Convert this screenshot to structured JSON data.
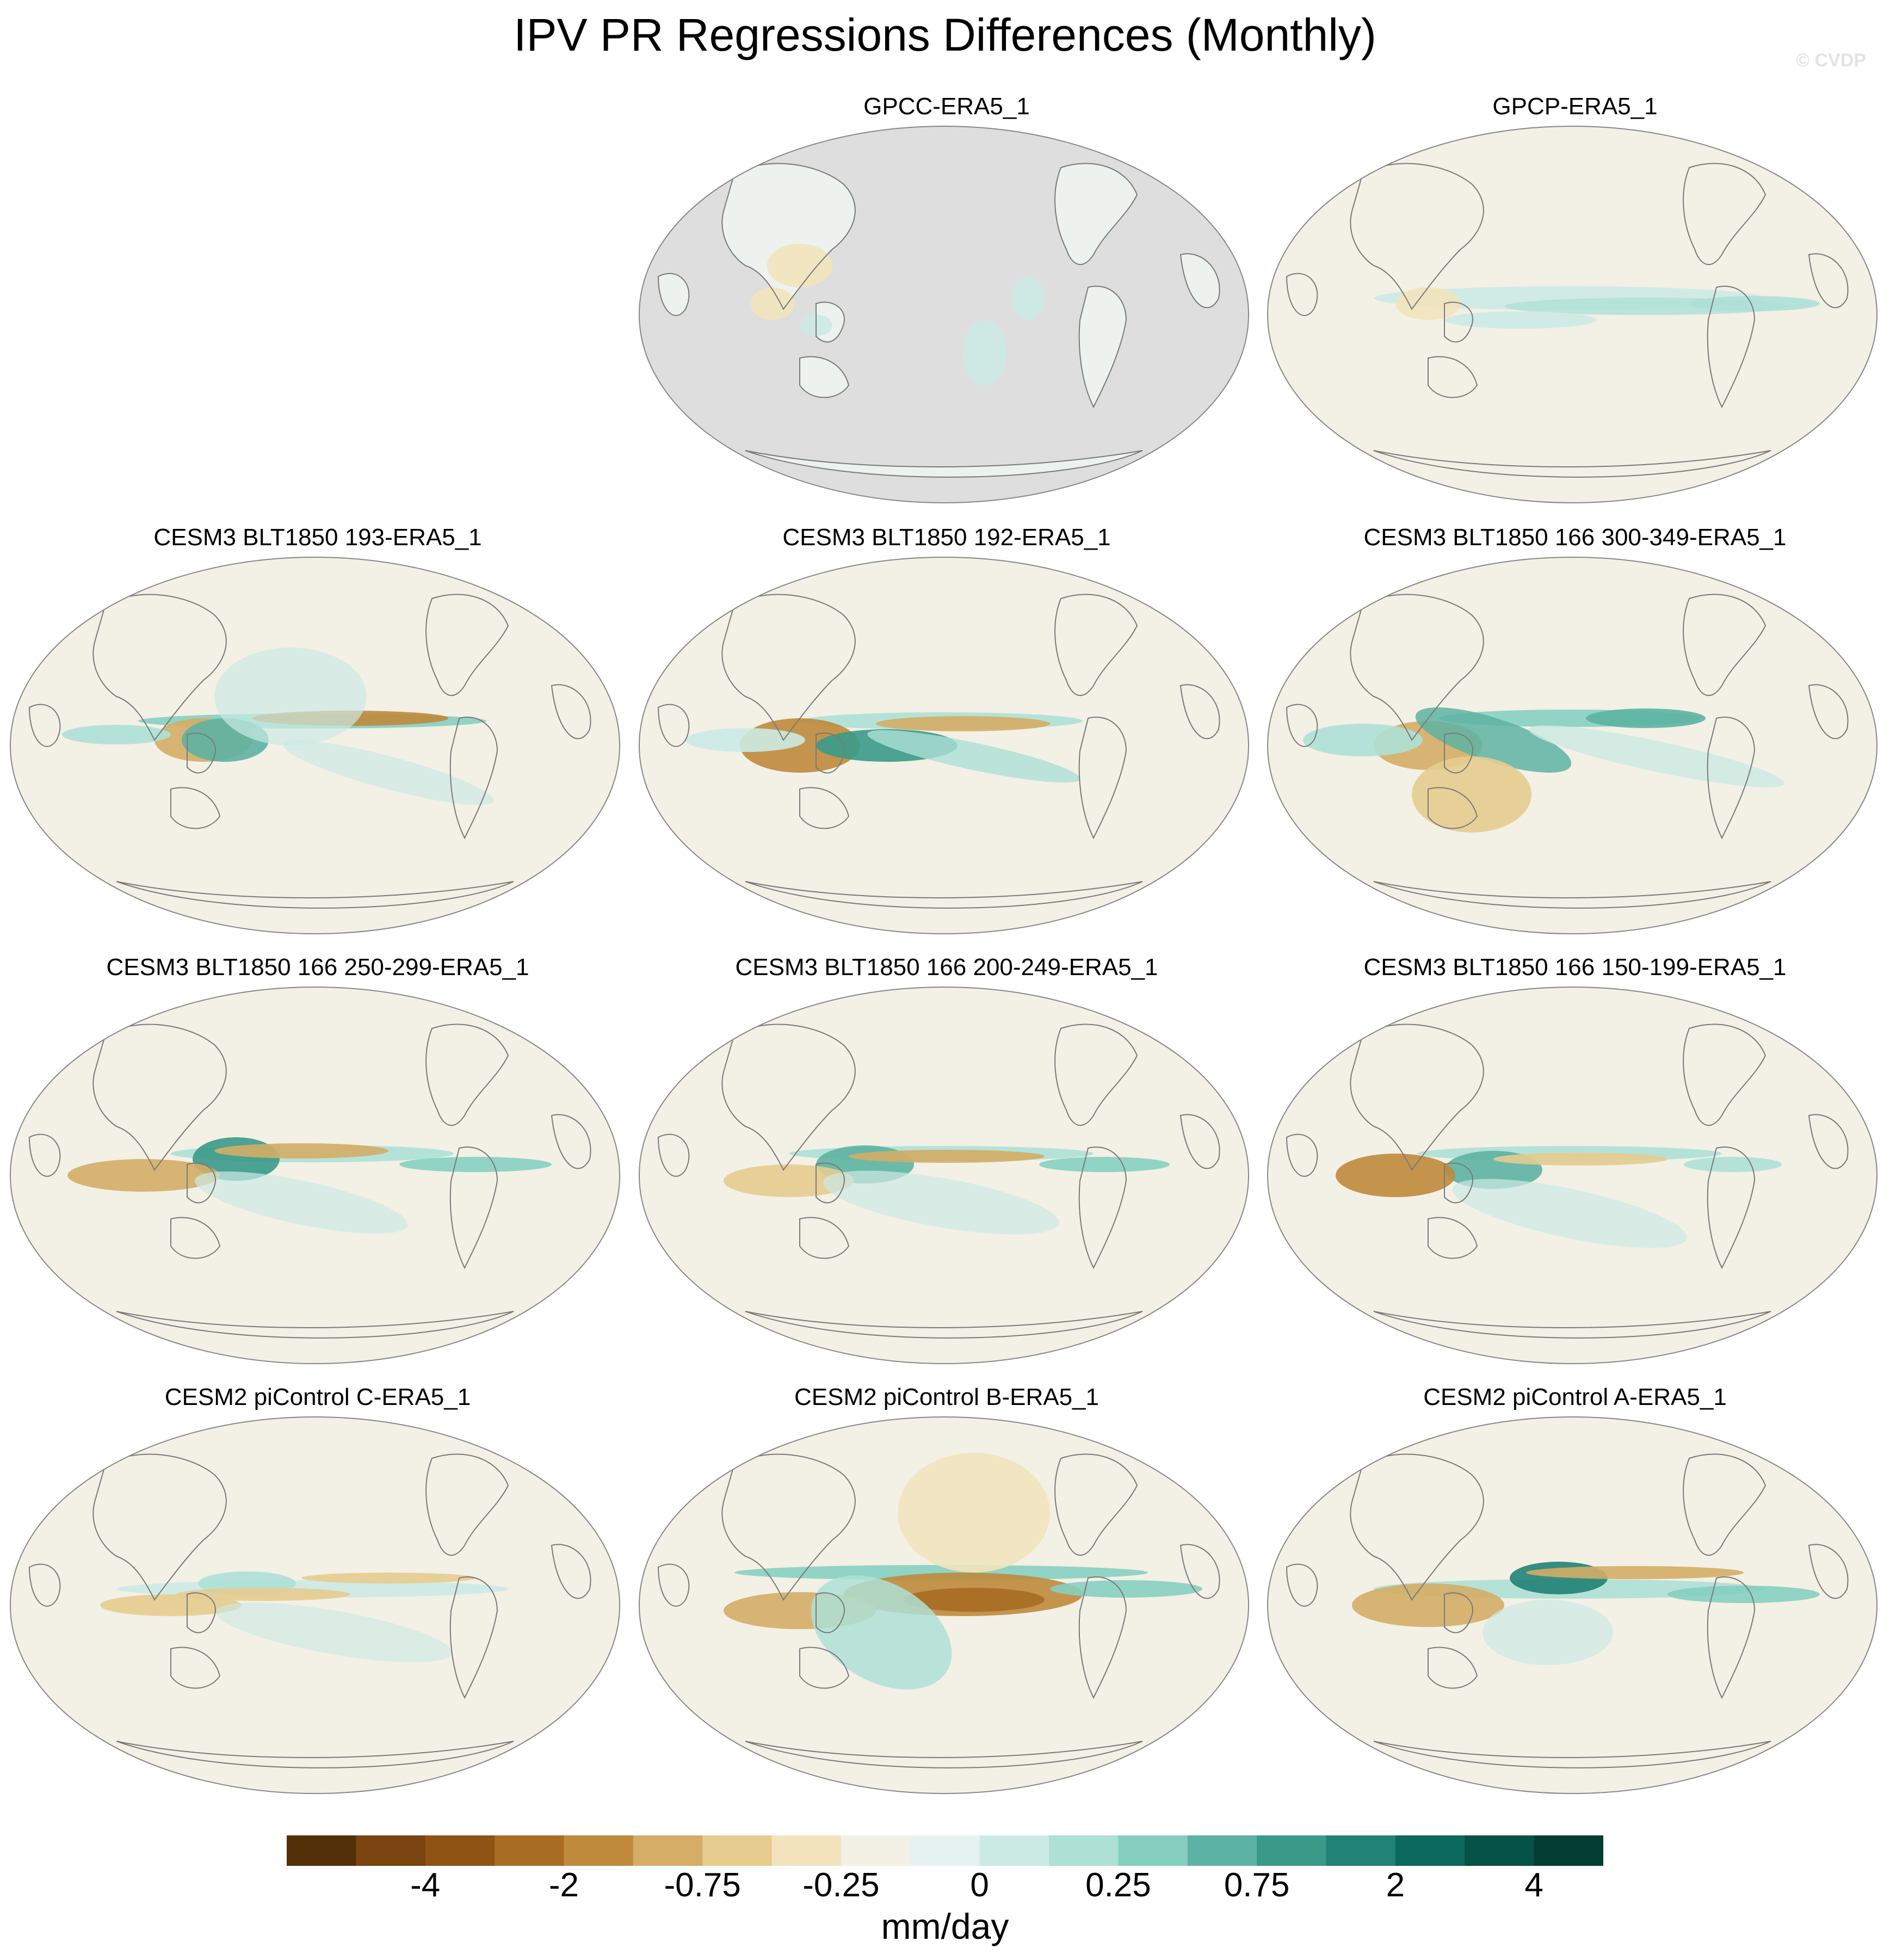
{
  "title": "IPV PR Regressions Differences (Monthly)",
  "watermark": "© CVDP",
  "panels": [
    {
      "label": "GPCC-ERA5_1",
      "land_only": true
    },
    {
      "label": "GPCP-ERA5_1"
    },
    {
      "label": "CESM3 BLT1850 193-ERA5_1"
    },
    {
      "label": "CESM3 BLT1850 192-ERA5_1"
    },
    {
      "label": "CESM3 BLT1850 166 300-349-ERA5_1"
    },
    {
      "label": "CESM3 BLT1850 166 250-299-ERA5_1"
    },
    {
      "label": "CESM3 BLT1850 166 200-249-ERA5_1"
    },
    {
      "label": "CESM3 BLT1850 166 150-199-ERA5_1"
    },
    {
      "label": "CESM2 piControl C-ERA5_1"
    },
    {
      "label": "CESM2 piControl B-ERA5_1"
    },
    {
      "label": "CESM2 piControl A-ERA5_1"
    }
  ],
  "colorbar": {
    "units": "mm/day",
    "colors": [
      "#54300a",
      "#7a4510",
      "#8f5413",
      "#a86c23",
      "#bf8a3c",
      "#d4ad66",
      "#e6cc8f",
      "#f2e3bd",
      "#f3f0e6",
      "#e6f2f0",
      "#cceae4",
      "#aee0d6",
      "#86cfc0",
      "#5db3a3",
      "#3a9a89",
      "#218276",
      "#0b6a5d",
      "#055246",
      "#023d32"
    ],
    "tick_labels": [
      "-4",
      "-2",
      "-0.75",
      "-0.25",
      "0",
      "0.25",
      "0.75",
      "2",
      "4"
    ]
  },
  "colors": {
    "ocean_masked": "#dedede",
    "coastline": "#7a7a7a",
    "neutral": "#f3f0e6"
  }
}
